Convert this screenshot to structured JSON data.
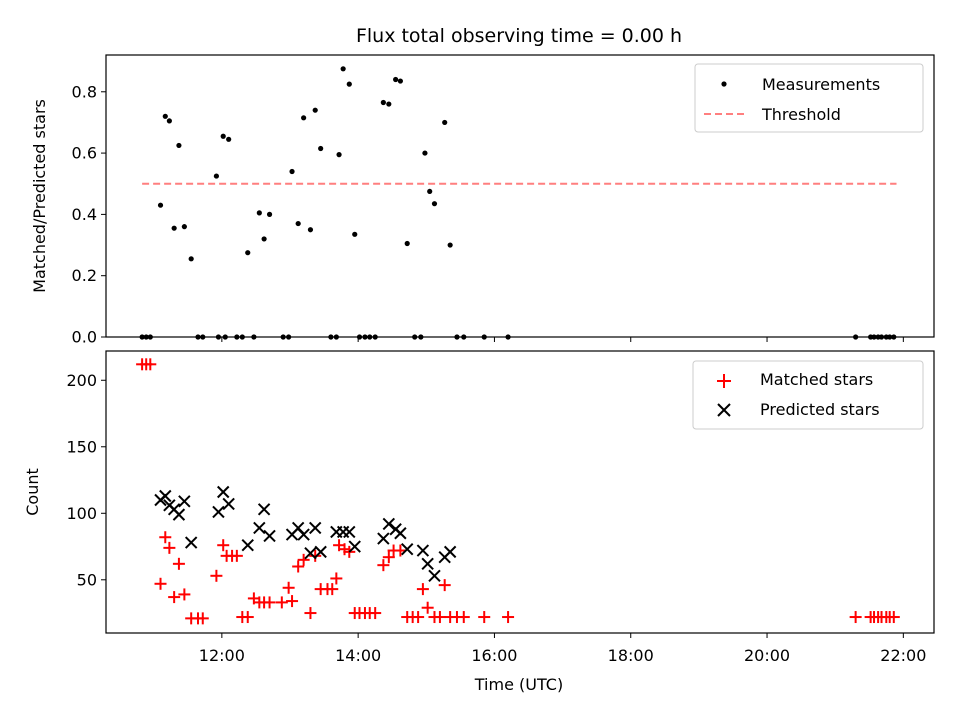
{
  "chart_data": [
    {
      "type": "scatter",
      "title": "Flux total observing time = 0.00 h",
      "xlabel": "",
      "ylabel": "Matched/Predicted stars",
      "ylim": [
        0,
        0.92
      ],
      "yticks": [
        0.0,
        0.2,
        0.4,
        0.6,
        0.8
      ],
      "ytick_labels": [
        "0.0",
        "0.2",
        "0.4",
        "0.6",
        "0.8"
      ],
      "x_unit": "hours UTC",
      "xlim": [
        10.3,
        22.45
      ],
      "legend_position": "upper right",
      "grid": false,
      "series": [
        {
          "name": "Measurements",
          "marker": "dot",
          "color": "#000000",
          "x": [
            10.83,
            10.89,
            10.95,
            11.1,
            11.17,
            11.23,
            11.3,
            11.37,
            11.45,
            11.55,
            11.65,
            11.72,
            11.95,
            12.02,
            12.1,
            11.92,
            12.05,
            12.22,
            12.3,
            12.38,
            12.47,
            12.55,
            12.62,
            12.7,
            12.9,
            12.98,
            13.03,
            13.12,
            13.2,
            13.3,
            13.37,
            13.45,
            13.6,
            13.68,
            13.72,
            13.78,
            13.87,
            13.95,
            14.02,
            14.1,
            14.17,
            14.25,
            14.37,
            14.45,
            14.55,
            14.62,
            14.72,
            14.83,
            14.92,
            14.98,
            15.05,
            15.12,
            15.27,
            15.35,
            15.45,
            15.55,
            15.85,
            16.2,
            21.3,
            21.52,
            21.57,
            21.63,
            21.68,
            21.75,
            21.8,
            21.86
          ],
          "y": [
            0,
            0,
            0,
            0.43,
            0.72,
            0.705,
            0.355,
            0.625,
            0.36,
            0.255,
            0,
            0,
            0,
            0.655,
            0.645,
            0.525,
            0,
            0,
            0,
            0.275,
            0,
            0.405,
            0.32,
            0.4,
            0,
            0,
            0.54,
            0.37,
            0.715,
            0.35,
            0.74,
            0.615,
            0,
            0,
            0.595,
            0.875,
            0.825,
            0.335,
            0,
            0,
            0,
            0,
            0.765,
            0.76,
            0.84,
            0.835,
            0.305,
            0,
            0,
            0.6,
            0.475,
            0.435,
            0.7,
            0.3,
            0,
            0,
            0,
            0,
            0,
            0,
            0,
            0,
            0,
            0,
            0,
            0
          ]
        },
        {
          "name": "Threshold",
          "style": "dashed",
          "color": "#ff7f7f",
          "x": [
            10.83,
            21.9
          ],
          "y": [
            0.5,
            0.5
          ]
        }
      ]
    },
    {
      "type": "scatter",
      "title": "",
      "xlabel": "Time (UTC)",
      "ylabel": "Count",
      "ylim": [
        10,
        222
      ],
      "yticks": [
        50,
        100,
        150,
        200
      ],
      "ytick_labels": [
        "50",
        "100",
        "150",
        "200"
      ],
      "x_unit": "hours UTC",
      "xlim": [
        10.3,
        22.45
      ],
      "xticks": [
        12,
        14,
        16,
        18,
        20,
        22
      ],
      "xtick_labels": [
        "12:00",
        "14:00",
        "16:00",
        "18:00",
        "20:00",
        "22:00"
      ],
      "legend_position": "upper right",
      "grid": false,
      "series": [
        {
          "name": "Matched stars",
          "marker": "plus",
          "color": "#ff0000",
          "x": [
            10.83,
            10.89,
            10.95,
            11.1,
            11.17,
            11.23,
            11.3,
            11.37,
            11.45,
            11.55,
            11.65,
            11.72,
            11.92,
            12.02,
            12.07,
            12.15,
            12.22,
            12.3,
            12.38,
            12.47,
            12.55,
            12.62,
            12.7,
            12.88,
            12.98,
            13.03,
            13.12,
            13.2,
            13.3,
            13.37,
            13.45,
            13.55,
            13.62,
            13.68,
            13.72,
            13.8,
            13.87,
            13.95,
            14.02,
            14.1,
            14.17,
            14.25,
            14.37,
            14.45,
            14.52,
            14.62,
            14.72,
            14.8,
            14.88,
            14.95,
            15.02,
            15.12,
            15.2,
            15.27,
            15.35,
            15.45,
            15.55,
            15.85,
            16.2,
            21.3,
            21.52,
            21.57,
            21.63,
            21.68,
            21.75,
            21.8,
            21.86
          ],
          "y": [
            212,
            212,
            212,
            47,
            82,
            74,
            37,
            62,
            39,
            21,
            21,
            21,
            53,
            76,
            68,
            68,
            68,
            22,
            22,
            36,
            33,
            33,
            33,
            33,
            44,
            34,
            60,
            65,
            25,
            68,
            43,
            43,
            43,
            51,
            76,
            73,
            71,
            25,
            25,
            25,
            25,
            25,
            61,
            67,
            72,
            72,
            22,
            22,
            22,
            43,
            29,
            22,
            22,
            46,
            22,
            22,
            22,
            22,
            22,
            22,
            22,
            22,
            22,
            22,
            22,
            22,
            22
          ]
        },
        {
          "name": "Predicted stars",
          "marker": "x",
          "color": "#000000",
          "x": [
            11.1,
            11.17,
            11.23,
            11.3,
            11.37,
            11.45,
            11.55,
            11.95,
            12.02,
            12.1,
            12.38,
            12.55,
            12.62,
            12.7,
            13.03,
            13.12,
            13.2,
            13.3,
            13.37,
            13.45,
            13.68,
            13.78,
            13.87,
            13.95,
            14.37,
            14.45,
            14.55,
            14.62,
            14.72,
            14.95,
            15.02,
            15.12,
            15.27,
            15.35
          ],
          "y": [
            110,
            113,
            106,
            103,
            99,
            109,
            78,
            101,
            116,
            107,
            76,
            89,
            103,
            83,
            84,
            89,
            84,
            70,
            89,
            71,
            86,
            86,
            86,
            75,
            81,
            92,
            88,
            85,
            73,
            72,
            62,
            53,
            67,
            71
          ]
        }
      ]
    }
  ]
}
